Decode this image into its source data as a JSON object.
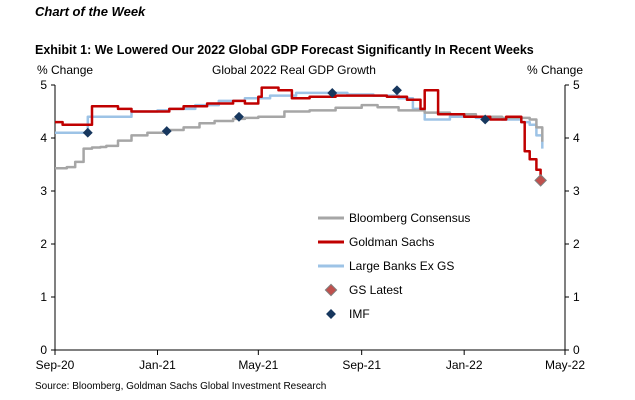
{
  "kicker": "Chart of the Week",
  "title": "Exhibit 1: We Lowered Our 2022 Global GDP Forecast Significantly In Recent Weeks",
  "subtitle": "Global 2022 Real GDP Growth",
  "source": "Source: Bloomberg, Goldman Sachs Global Investment Research",
  "chart_data": {
    "type": "line",
    "title": "Global 2022 Real GDP Growth",
    "ylabel_left": "% Change",
    "ylabel_right": "% Change",
    "xlabel": "",
    "ylim": [
      0,
      5
    ],
    "yticks": [
      0,
      1,
      2,
      3,
      4,
      5
    ],
    "xlim": [
      "2020-09-01",
      "2022-05-01"
    ],
    "xticks": [
      "Sep-20",
      "Jan-21",
      "May-21",
      "Sep-21",
      "Jan-22",
      "May-22"
    ],
    "grid": false,
    "legend_position": "center-right",
    "colors": {
      "bloomberg": "#a6a6a6",
      "gs": "#c00000",
      "large_banks": "#9dc3e6",
      "gs_latest": "#c0504d",
      "imf": "#17375e"
    },
    "series": [
      {
        "name": "Bloomberg Consensus",
        "style": "line",
        "x": [
          "2020-09-01",
          "2020-09-15",
          "2020-09-25",
          "2020-10-05",
          "2020-10-15",
          "2020-10-25",
          "2020-11-01",
          "2020-11-15",
          "2020-12-01",
          "2020-12-20",
          "2021-01-10",
          "2021-02-01",
          "2021-02-20",
          "2021-03-10",
          "2021-04-01",
          "2021-04-15",
          "2021-05-01",
          "2021-06-01",
          "2021-07-01",
          "2021-08-01",
          "2021-09-01",
          "2021-09-20",
          "2021-10-15",
          "2021-11-15",
          "2021-12-15",
          "2022-01-15",
          "2022-02-15",
          "2022-03-10",
          "2022-03-20",
          "2022-03-28",
          "2022-04-04"
        ],
        "y": [
          3.43,
          3.45,
          3.55,
          3.8,
          3.82,
          3.83,
          3.85,
          3.95,
          4.05,
          4.1,
          4.15,
          4.2,
          4.28,
          4.32,
          4.36,
          4.38,
          4.4,
          4.5,
          4.52,
          4.57,
          4.62,
          4.58,
          4.52,
          4.48,
          4.45,
          4.4,
          4.38,
          4.38,
          4.35,
          4.2,
          3.93
        ]
      },
      {
        "name": "Goldman Sachs",
        "style": "line",
        "x": [
          "2020-09-01",
          "2020-09-10",
          "2020-10-01",
          "2020-10-15",
          "2020-11-01",
          "2020-11-15",
          "2020-12-01",
          "2021-01-01",
          "2021-01-15",
          "2021-02-01",
          "2021-03-01",
          "2021-04-01",
          "2021-04-15",
          "2021-05-01",
          "2021-05-05",
          "2021-05-25",
          "2021-06-10",
          "2021-07-01",
          "2021-08-01",
          "2021-09-01",
          "2021-10-01",
          "2021-10-25",
          "2021-11-10",
          "2021-11-15",
          "2021-12-01",
          "2022-01-01",
          "2022-02-01",
          "2022-02-20",
          "2022-03-10",
          "2022-03-14",
          "2022-03-20",
          "2022-03-28",
          "2022-04-02"
        ],
        "y": [
          4.3,
          4.25,
          4.25,
          4.6,
          4.6,
          4.55,
          4.5,
          4.5,
          4.55,
          4.6,
          4.65,
          4.7,
          4.65,
          4.78,
          4.95,
          4.9,
          4.75,
          4.78,
          4.8,
          4.8,
          4.78,
          4.72,
          4.55,
          4.9,
          4.45,
          4.4,
          4.35,
          4.4,
          4.3,
          3.75,
          3.6,
          3.4,
          3.2
        ]
      },
      {
        "name": "Large Banks Ex GS",
        "style": "line",
        "x": [
          "2020-09-01",
          "2020-10-01",
          "2020-10-10",
          "2020-11-01",
          "2020-12-01",
          "2021-01-01",
          "2021-01-15",
          "2021-02-15",
          "2021-03-15",
          "2021-04-15",
          "2021-05-15",
          "2021-06-15",
          "2021-07-15",
          "2021-08-15",
          "2021-09-15",
          "2021-10-15",
          "2021-11-01",
          "2021-11-15",
          "2021-12-15",
          "2022-01-15",
          "2022-02-15",
          "2022-03-10",
          "2022-03-20",
          "2022-03-28",
          "2022-04-04"
        ],
        "y": [
          4.1,
          4.1,
          4.4,
          4.4,
          4.5,
          4.52,
          4.55,
          4.62,
          4.7,
          4.75,
          4.8,
          4.85,
          4.85,
          4.82,
          4.8,
          4.75,
          4.55,
          4.35,
          4.4,
          4.38,
          4.35,
          4.3,
          4.25,
          4.05,
          3.8
        ]
      },
      {
        "name": "GS Latest",
        "style": "marker",
        "x": [
          "2022-04-02"
        ],
        "y": [
          3.2
        ]
      },
      {
        "name": "IMF",
        "style": "marker",
        "x": [
          "2020-10-10",
          "2021-01-12",
          "2021-04-08",
          "2021-07-28",
          "2021-10-13",
          "2022-01-26"
        ],
        "y": [
          4.1,
          4.13,
          4.4,
          4.85,
          4.9,
          4.35
        ]
      }
    ]
  }
}
